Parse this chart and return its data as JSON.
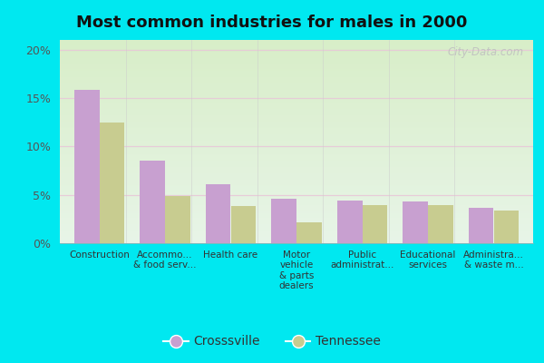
{
  "title": "Most common industries for males in 2000",
  "categories": [
    "Construction",
    "Accommo...\n& food serv...",
    "Health care",
    "Motor\nvehicle\n& parts\ndealers",
    "Public\nadministrat...",
    "Educational\nservices",
    "Administra...\n& waste m..."
  ],
  "crossville_values": [
    15.8,
    8.5,
    6.1,
    4.6,
    4.4,
    4.3,
    3.7
  ],
  "tennessee_values": [
    12.5,
    4.9,
    3.8,
    2.2,
    3.9,
    3.9,
    3.4
  ],
  "crossville_color": "#c8a0d0",
  "tennessee_color": "#c8cc90",
  "background_outer": "#00e8f0",
  "ylim": [
    0,
    21
  ],
  "yticks": [
    0,
    5,
    10,
    15,
    20
  ],
  "ytick_labels": [
    "0%",
    "5%",
    "10%",
    "15%",
    "20%"
  ],
  "watermark": "City-Data.com",
  "legend_crossville": "Crosssville",
  "legend_tennessee": "Tennessee",
  "bar_width": 0.38
}
